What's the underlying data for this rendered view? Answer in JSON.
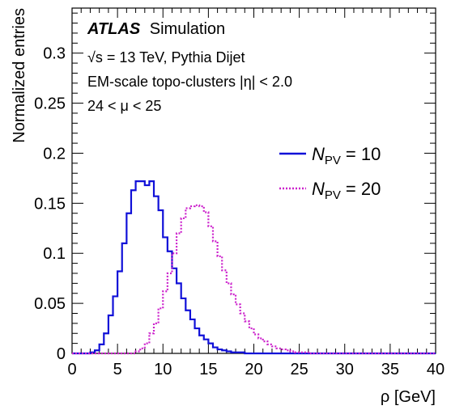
{
  "chart_data": {
    "type": "line",
    "style": "step-histogram",
    "xlabel": "ρ [GeV]",
    "ylabel": "Normalized entries",
    "xlim": [
      0,
      40
    ],
    "ylim": [
      0,
      0.345
    ],
    "x_ticks": [
      "0",
      "5",
      "10",
      "15",
      "20",
      "25",
      "30",
      "35",
      "40"
    ],
    "y_ticks": [
      "0",
      "0.05",
      "0.1",
      "0.15",
      "0.2",
      "0.25",
      "0.3"
    ],
    "y_tick_values": [
      0,
      0.05,
      0.1,
      0.15,
      0.2,
      0.25,
      0.3
    ],
    "x_tick_values": [
      0,
      5,
      10,
      15,
      20,
      25,
      30,
      35,
      40
    ],
    "grid": false,
    "legend_position": "right",
    "annotations": {
      "atlas": "ATLAS",
      "simulation": "Simulation",
      "sqrt_s": "√s = 13 TeV, Pythia Dijet",
      "clusters": "EM-scale topo-clusters |η| < 2.0",
      "mu": "24 < μ < 25"
    },
    "bin_edges": [
      0,
      0.5,
      1,
      1.5,
      2,
      2.5,
      3,
      3.5,
      4,
      4.5,
      5,
      5.5,
      6,
      6.5,
      7,
      7.5,
      8,
      8.5,
      9,
      9.5,
      10,
      10.5,
      11,
      11.5,
      12,
      12.5,
      13,
      13.5,
      14,
      14.5,
      15,
      15.5,
      16,
      16.5,
      17,
      17.5,
      18,
      18.5,
      19,
      19.5,
      20,
      20.5,
      21,
      21.5,
      22,
      22.5,
      23,
      23.5,
      24,
      24.5,
      25,
      25.5,
      26,
      26.5,
      27,
      27.5,
      28,
      28.5,
      29,
      29.5,
      30,
      30.5,
      31,
      31.5,
      32,
      32.5,
      33,
      33.5,
      34,
      34.5,
      35,
      35.5,
      36,
      36.5,
      37,
      37.5,
      38,
      38.5,
      39,
      39.5,
      40
    ],
    "series": [
      {
        "legend_symbol": "N",
        "legend_sub": "PV",
        "legend_value": "= 10",
        "color": "#1010d8",
        "dash": "solid",
        "values": [
          0,
          0,
          0,
          0,
          0.001,
          0.003,
          0.009,
          0.02,
          0.038,
          0.057,
          0.082,
          0.11,
          0.14,
          0.163,
          0.172,
          0.172,
          0.168,
          0.172,
          0.157,
          0.143,
          0.116,
          0.102,
          0.085,
          0.07,
          0.055,
          0.043,
          0.034,
          0.025,
          0.018,
          0.014,
          0.01,
          0.006,
          0.004,
          0.003,
          0.002,
          0.001,
          0.001,
          0.001,
          0,
          0,
          0,
          0,
          0,
          0,
          0,
          0,
          0,
          0,
          0,
          0,
          0,
          0,
          0,
          0,
          0,
          0,
          0,
          0,
          0,
          0,
          0,
          0,
          0,
          0,
          0,
          0,
          0,
          0,
          0,
          0,
          0,
          0,
          0,
          0,
          0,
          0,
          0,
          0,
          0,
          0
        ]
      },
      {
        "legend_symbol": "N",
        "legend_sub": "PV",
        "legend_value": "= 20",
        "color": "#cc22cc",
        "dash": "dotted",
        "values": [
          0,
          0,
          0,
          0,
          0,
          0,
          0,
          0,
          0,
          0,
          0,
          0,
          0,
          0,
          0.002,
          0.005,
          0.01,
          0.02,
          0.03,
          0.045,
          0.062,
          0.08,
          0.1,
          0.12,
          0.135,
          0.145,
          0.147,
          0.148,
          0.147,
          0.141,
          0.127,
          0.112,
          0.097,
          0.083,
          0.07,
          0.059,
          0.049,
          0.04,
          0.032,
          0.025,
          0.019,
          0.015,
          0.012,
          0.009,
          0.007,
          0.005,
          0.004,
          0.003,
          0.002,
          0.001,
          0.001,
          0.001,
          0,
          0,
          0,
          0,
          0,
          0,
          0,
          0,
          0,
          0,
          0,
          0,
          0,
          0,
          0,
          0,
          0,
          0,
          0,
          0,
          0,
          0,
          0,
          0,
          0,
          0,
          0,
          0
        ]
      }
    ]
  }
}
